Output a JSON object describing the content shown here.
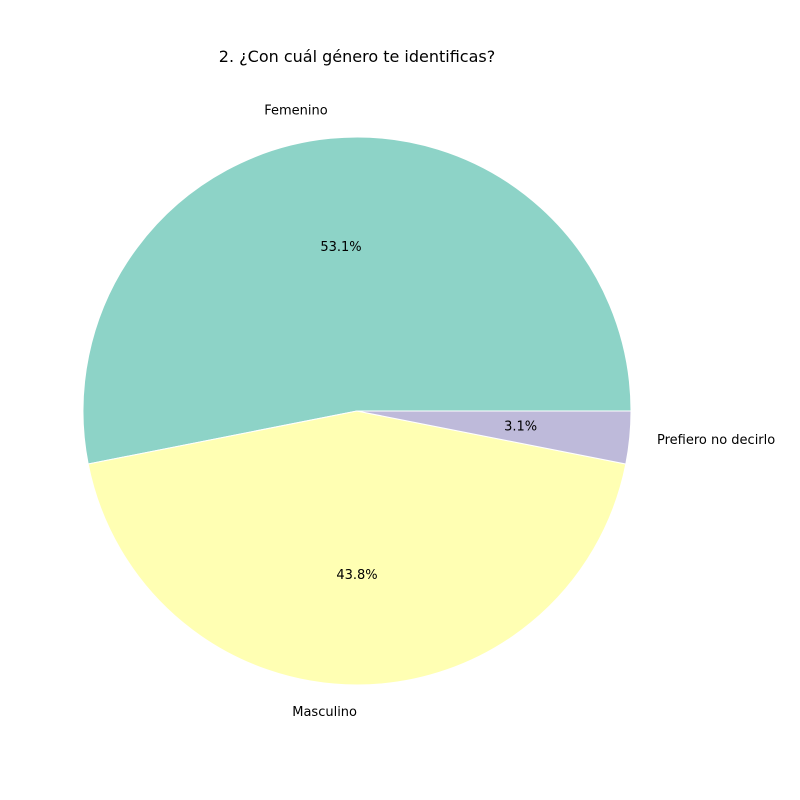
{
  "chart_data": {
    "type": "pie",
    "title": "2. ¿Con cuál género te identificas?",
    "labels": [
      "Femenino",
      "Masculino",
      "Prefiero no decirlo"
    ],
    "values": [
      53.1,
      43.8,
      3.1
    ],
    "percent_labels": [
      "53.1%",
      "43.8%",
      "3.1%"
    ],
    "colors": [
      "#8dd3c7",
      "#ffffb3",
      "#bebada"
    ],
    "start_angle_deg": 0,
    "direction": "counterclockwise",
    "legend": "none"
  }
}
